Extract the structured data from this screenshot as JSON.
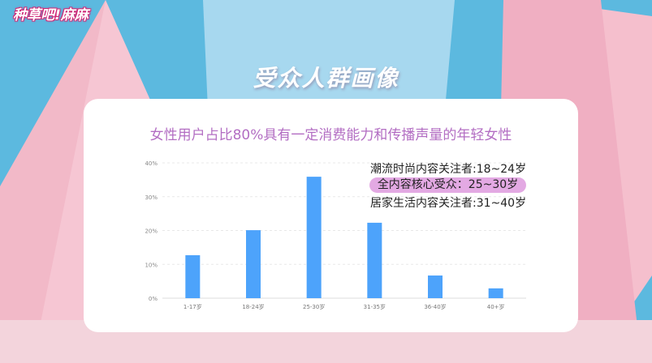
{
  "logo": {
    "text": "种草吧!麻麻"
  },
  "title": "受众人群画像",
  "subtitle": "女性用户占比80%具有一定消费能力和传播声量的年轻女性",
  "notes": [
    "潮流时尚内容关注者:18~24岁",
    "全内容核心受众：25~30岁",
    "居家生活内容关注者:31~40岁"
  ],
  "colors": {
    "bar": "#4da3fb",
    "highlight": "#e3a9e3",
    "subtitle": "#b36ec3"
  },
  "chart_data": {
    "type": "bar",
    "categories": [
      "1-17岁",
      "18-24岁",
      "25-30岁",
      "31-35岁",
      "36-40岁",
      "40+岁"
    ],
    "values": [
      12.7,
      20.1,
      35.9,
      22.3,
      6.7,
      2.9
    ],
    "yticks": [
      "0%",
      "10%",
      "20%",
      "30%",
      "40%"
    ],
    "ylim": [
      0,
      40
    ],
    "grid": true,
    "xlabel": "",
    "ylabel": ""
  }
}
